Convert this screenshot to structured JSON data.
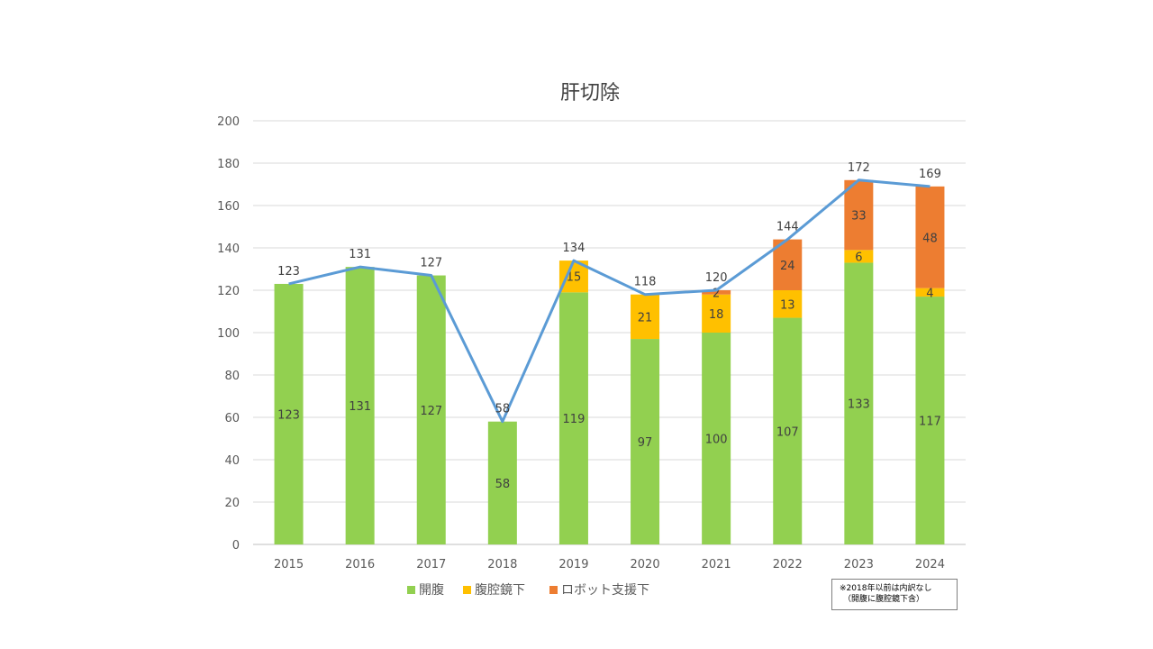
{
  "chart_data": {
    "type": "bar",
    "stacked": true,
    "title": "肝切除",
    "categories": [
      "2015",
      "2016",
      "2017",
      "2018",
      "2019",
      "2020",
      "2021",
      "2022",
      "2023",
      "2024"
    ],
    "series": [
      {
        "name": "開腹",
        "color": "#92d050",
        "values": [
          123,
          131,
          127,
          58,
          119,
          97,
          100,
          107,
          133,
          117
        ]
      },
      {
        "name": "腹腔鏡下",
        "color": "#ffc000",
        "values": [
          0,
          0,
          0,
          0,
          15,
          21,
          18,
          13,
          6,
          4
        ]
      },
      {
        "name": "ロボット支援下",
        "color": "#ed7d31",
        "values": [
          0,
          0,
          0,
          0,
          0,
          0,
          2,
          24,
          33,
          48
        ]
      }
    ],
    "totals": {
      "color": "#5b9bd5",
      "values": [
        123,
        131,
        127,
        58,
        134,
        118,
        120,
        144,
        172,
        169
      ]
    },
    "ylim": [
      0,
      200
    ],
    "yticks": [
      0,
      20,
      40,
      60,
      80,
      100,
      120,
      140,
      160,
      180,
      200
    ],
    "grid": true,
    "legend": "bottom"
  },
  "note": {
    "line1": "※2018年以前は内訳なし",
    "line2": "（開腹に腹腔鏡下含）"
  }
}
